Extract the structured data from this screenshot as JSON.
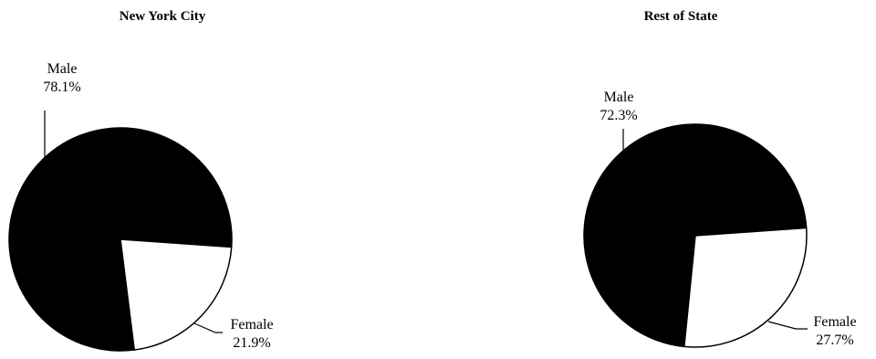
{
  "chart_data": [
    {
      "type": "pie",
      "title": "New York City",
      "slices": [
        {
          "label": "Male",
          "value": 78.1,
          "value_label": "78.1%",
          "color": "#000000"
        },
        {
          "label": "Female",
          "value": 21.9,
          "value_label": "21.9%",
          "color": "#ffffff"
        }
      ]
    },
    {
      "type": "pie",
      "title": "Rest of State",
      "slices": [
        {
          "label": "Male",
          "value": 72.3,
          "value_label": "72.3%",
          "color": "#000000"
        },
        {
          "label": "Female",
          "value": 27.7,
          "value_label": "27.7%",
          "color": "#ffffff"
        }
      ]
    }
  ]
}
